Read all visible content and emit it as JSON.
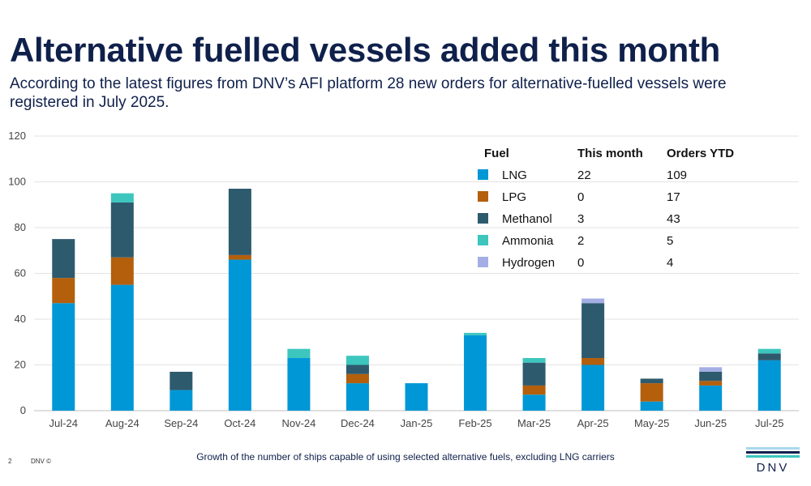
{
  "page": {
    "title": "Alternative fuelled vessels added this month",
    "subtitle": "According to the latest figures from DNV’s AFI platform 28 new orders for alternative-fuelled vessels were registered in July 2025.",
    "caption": "Growth of the number of ships capable of using selected alternative fuels, excluding LNG carriers",
    "page_number": "2",
    "footer_brand": "DNV ©",
    "logo_text": "DNV"
  },
  "colors": {
    "LNG": "#0097d6",
    "LPG": "#b35f0c",
    "Methanol": "#2e5a6e",
    "Ammonia": "#3cc6be",
    "Hydrogen": "#a4aee4",
    "logo_stripe_1": "#a8d8ee",
    "logo_stripe_2": "#0f204b",
    "logo_stripe_3": "#3cc6be"
  },
  "chart_data": {
    "type": "bar",
    "stacked": true,
    "categories": [
      "Jul-24",
      "Aug-24",
      "Sep-24",
      "Oct-24",
      "Nov-24",
      "Dec-24",
      "Jan-25",
      "Feb-25",
      "Mar-25",
      "Apr-25",
      "May-25",
      "Jun-25",
      "Jul-25"
    ],
    "series": [
      {
        "name": "LNG",
        "values": [
          47,
          55,
          9,
          66,
          23,
          12,
          12,
          33,
          7,
          20,
          4,
          11,
          22
        ]
      },
      {
        "name": "LPG",
        "values": [
          11,
          12,
          0,
          2,
          0,
          4,
          0,
          0,
          4,
          3,
          8,
          2,
          0
        ]
      },
      {
        "name": "Methanol",
        "values": [
          17,
          24,
          8,
          29,
          0,
          4,
          0,
          0,
          10,
          24,
          2,
          4,
          3
        ]
      },
      {
        "name": "Ammonia",
        "values": [
          0,
          4,
          0,
          0,
          4,
          4,
          0,
          1,
          2,
          0,
          0,
          0,
          2
        ]
      },
      {
        "name": "Hydrogen",
        "values": [
          0,
          0,
          0,
          0,
          0,
          0,
          0,
          0,
          0,
          2,
          0,
          2,
          0
        ]
      }
    ],
    "ylim": [
      0,
      120
    ],
    "yticks": [
      "0",
      "20",
      "40",
      "60",
      "80",
      "100",
      "120"
    ],
    "grid": true,
    "legend_placement": "top-right",
    "legend": {
      "headers": [
        "Fuel",
        "This month",
        "Orders YTD"
      ],
      "rows": [
        {
          "fuel": "LNG",
          "this_month": "22",
          "ytd": "109"
        },
        {
          "fuel": "LPG",
          "this_month": "0",
          "ytd": "17"
        },
        {
          "fuel": "Methanol",
          "this_month": "3",
          "ytd": "43"
        },
        {
          "fuel": "Ammonia",
          "this_month": "2",
          "ytd": "5"
        },
        {
          "fuel": "Hydrogen",
          "this_month": "0",
          "ytd": "4"
        }
      ]
    }
  }
}
